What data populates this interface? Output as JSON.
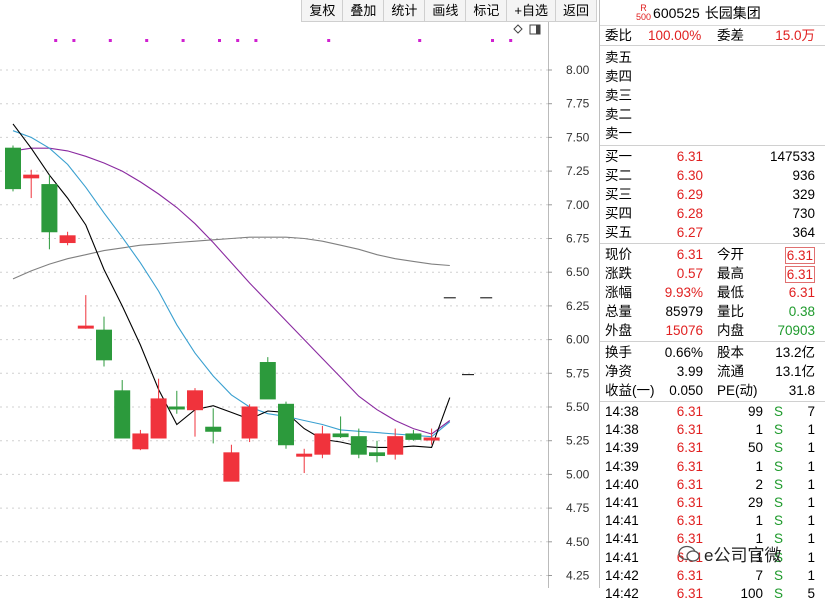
{
  "toolbar": [
    "复权",
    "叠加",
    "统计",
    "画线",
    "标记",
    "+自选",
    "返回"
  ],
  "y_ticks": [
    {
      "v": 8.0,
      "l": "8.00"
    },
    {
      "v": 7.75,
      "l": "7.75"
    },
    {
      "v": 7.5,
      "l": "7.50"
    },
    {
      "v": 7.25,
      "l": "7.25"
    },
    {
      "v": 7.0,
      "l": "7.00"
    },
    {
      "v": 6.75,
      "l": "6.75"
    },
    {
      "v": 6.5,
      "l": "6.50"
    },
    {
      "v": 6.25,
      "l": "6.25"
    },
    {
      "v": 6.0,
      "l": "6.00"
    },
    {
      "v": 5.75,
      "l": "5.75"
    },
    {
      "v": 5.5,
      "l": "5.50"
    },
    {
      "v": 5.25,
      "l": "5.25"
    },
    {
      "v": 5.0,
      "l": "5.00"
    },
    {
      "v": 4.75,
      "l": "4.75"
    },
    {
      "v": 4.5,
      "l": "4.50"
    },
    {
      "v": 4.25,
      "l": "4.25"
    }
  ],
  "chart_data": {
    "type": "candlestick",
    "colors": {
      "up": "#f0333c",
      "down": "#2c9a3c",
      "ma5": "#000000",
      "ma10": "#3aa0d0",
      "ma20": "#8a2aa0",
      "ma60": "#808080"
    },
    "candles": [
      {
        "o": 7.42,
        "c": 7.12,
        "h": 7.44,
        "l": 7.1
      },
      {
        "o": 7.2,
        "c": 7.22,
        "h": 7.26,
        "l": 7.05
      },
      {
        "o": 7.15,
        "c": 6.8,
        "h": 7.22,
        "l": 6.67
      },
      {
        "o": 6.72,
        "c": 6.77,
        "h": 6.8,
        "l": 6.7
      },
      {
        "o": 6.09,
        "c": 6.1,
        "h": 6.33,
        "l": 6.08
      },
      {
        "o": 6.07,
        "c": 5.85,
        "h": 6.17,
        "l": 5.8
      },
      {
        "o": 5.62,
        "c": 5.27,
        "h": 5.7,
        "l": 5.27
      },
      {
        "o": 5.19,
        "c": 5.3,
        "h": 5.33,
        "l": 5.18
      },
      {
        "o": 5.27,
        "c": 5.56,
        "h": 5.71,
        "l": 5.27
      },
      {
        "o": 5.5,
        "c": 5.49,
        "h": 5.62,
        "l": 5.45
      },
      {
        "o": 5.48,
        "c": 5.62,
        "h": 5.64,
        "l": 5.28
      },
      {
        "o": 5.35,
        "c": 5.32,
        "h": 5.49,
        "l": 5.23
      },
      {
        "o": 4.95,
        "c": 5.16,
        "h": 5.22,
        "l": 4.95
      },
      {
        "o": 5.27,
        "c": 5.5,
        "h": 5.52,
        "l": 5.24
      },
      {
        "o": 5.83,
        "c": 5.56,
        "h": 5.87,
        "l": 5.56
      },
      {
        "o": 5.52,
        "c": 5.22,
        "h": 5.54,
        "l": 5.19
      },
      {
        "o": 5.14,
        "c": 5.15,
        "h": 5.19,
        "l": 5.01
      },
      {
        "o": 5.15,
        "c": 5.3,
        "h": 5.36,
        "l": 5.12
      },
      {
        "o": 5.3,
        "c": 5.28,
        "h": 5.43,
        "l": 5.27
      },
      {
        "o": 5.28,
        "c": 5.15,
        "h": 5.34,
        "l": 5.12
      },
      {
        "o": 5.16,
        "c": 5.14,
        "h": 5.25,
        "l": 5.09
      },
      {
        "o": 5.15,
        "c": 5.28,
        "h": 5.34,
        "l": 5.11
      },
      {
        "o": 5.3,
        "c": 5.26,
        "h": 5.33,
        "l": 5.25
      },
      {
        "o": 5.27,
        "c": 5.27,
        "h": 5.34,
        "l": 5.22
      },
      {
        "o": 6.31,
        "c": 6.31,
        "h": 6.31,
        "l": 6.31
      },
      {
        "o": 5.74,
        "c": 5.74,
        "h": 5.74,
        "l": 5.74
      },
      {
        "o": 6.31,
        "c": 6.31,
        "h": 6.31,
        "l": 6.31
      }
    ],
    "ma5": [
      7.6,
      7.42,
      7.22,
      7.05,
      6.85,
      6.52,
      6.25,
      5.96,
      5.63,
      5.37,
      5.48,
      5.51,
      5.46,
      5.41,
      5.47,
      5.46,
      5.34,
      5.26,
      5.24,
      5.21,
      5.2,
      5.2,
      5.21,
      5.2,
      5.57
    ],
    "ma10": [
      7.55,
      7.5,
      7.42,
      7.3,
      7.13,
      6.94,
      6.76,
      6.57,
      6.36,
      6.11,
      5.9,
      5.73,
      5.59,
      5.5,
      5.45,
      5.43,
      5.4,
      5.37,
      5.33,
      5.32,
      5.31,
      5.3,
      5.29,
      5.28,
      5.39
    ],
    "ma20": [
      7.4,
      7.42,
      7.42,
      7.4,
      7.36,
      7.31,
      7.25,
      7.17,
      7.08,
      6.98,
      6.86,
      6.72,
      6.57,
      6.42,
      6.28,
      6.14,
      6.0,
      5.86,
      5.72,
      5.58,
      5.48,
      5.4,
      5.34,
      5.3,
      5.4
    ],
    "ma60": [
      6.45,
      6.51,
      6.56,
      6.6,
      6.63,
      6.66,
      6.68,
      6.7,
      6.71,
      6.72,
      6.73,
      6.74,
      6.75,
      6.76,
      6.76,
      6.76,
      6.75,
      6.73,
      6.7,
      6.67,
      6.63,
      6.6,
      6.58,
      6.56,
      6.55
    ],
    "markers": [
      1,
      2,
      4,
      6,
      8,
      10,
      11,
      12,
      16,
      21,
      25,
      26
    ],
    "ylim": [
      4.2,
      8.2
    ]
  },
  "header": {
    "code": "600525",
    "name": "长园集团",
    "badge_top": "R",
    "badge_bottom": "500"
  },
  "weibi": {
    "label": "委比",
    "value": "100.00%",
    "label2": "委差",
    "value2": "15.0万"
  },
  "asks": [
    {
      "label": "卖五",
      "price": "",
      "vol": ""
    },
    {
      "label": "卖四",
      "price": "",
      "vol": ""
    },
    {
      "label": "卖三",
      "price": "",
      "vol": ""
    },
    {
      "label": "卖二",
      "price": "",
      "vol": ""
    },
    {
      "label": "卖一",
      "price": "",
      "vol": ""
    }
  ],
  "bids": [
    {
      "label": "买一",
      "price": "6.31",
      "vol": "147533"
    },
    {
      "label": "买二",
      "price": "6.30",
      "vol": "936"
    },
    {
      "label": "买三",
      "price": "6.29",
      "vol": "329"
    },
    {
      "label": "买四",
      "price": "6.28",
      "vol": "730"
    },
    {
      "label": "买五",
      "price": "6.27",
      "vol": "364"
    }
  ],
  "quote": [
    {
      "l1": "现价",
      "v1": "6.31",
      "c1": "red",
      "l2": "今开",
      "v2": "6.31",
      "c2": "red",
      "box": true
    },
    {
      "l1": "涨跌",
      "v1": "0.57",
      "c1": "red",
      "l2": "最高",
      "v2": "6.31",
      "c2": "red",
      "box": true
    },
    {
      "l1": "涨幅",
      "v1": "9.93%",
      "c1": "red",
      "l2": "最低",
      "v2": "6.31",
      "c2": "red",
      "box": false
    },
    {
      "l1": "总量",
      "v1": "85979",
      "c1": "",
      "l2": "量比",
      "v2": "0.38",
      "c2": "green",
      "box": false
    },
    {
      "l1": "外盘",
      "v1": "15076",
      "c1": "red",
      "l2": "内盘",
      "v2": "70903",
      "c2": "green",
      "box": false
    }
  ],
  "fund": [
    {
      "l1": "换手",
      "v1": "0.66%",
      "l2": "股本",
      "v2": "13.2亿"
    },
    {
      "l1": "净资",
      "v1": "3.99",
      "l2": "流通",
      "v2": "13.1亿"
    },
    {
      "l1": "收益(一)",
      "v1": "0.050",
      "l2": "PE(动)",
      "v2": "31.8"
    }
  ],
  "ticks": [
    {
      "t": "14:38",
      "p": "6.31",
      "v": "99",
      "s": "S",
      "n": "7"
    },
    {
      "t": "14:38",
      "p": "6.31",
      "v": "1",
      "s": "S",
      "n": "1"
    },
    {
      "t": "14:39",
      "p": "6.31",
      "v": "50",
      "s": "S",
      "n": "1"
    },
    {
      "t": "14:39",
      "p": "6.31",
      "v": "1",
      "s": "S",
      "n": "1"
    },
    {
      "t": "14:40",
      "p": "6.31",
      "v": "2",
      "s": "S",
      "n": "1"
    },
    {
      "t": "14:41",
      "p": "6.31",
      "v": "29",
      "s": "S",
      "n": "1"
    },
    {
      "t": "14:41",
      "p": "6.31",
      "v": "1",
      "s": "S",
      "n": "1"
    },
    {
      "t": "14:41",
      "p": "6.31",
      "v": "1",
      "s": "S",
      "n": "1"
    },
    {
      "t": "14:41",
      "p": "6.31",
      "v": "1",
      "s": "S",
      "n": "1"
    },
    {
      "t": "14:42",
      "p": "6.31",
      "v": "7",
      "s": "S",
      "n": "1"
    },
    {
      "t": "14:42",
      "p": "6.31",
      "v": "100",
      "s": "S",
      "n": "5"
    }
  ],
  "watermark": "e公司官微"
}
